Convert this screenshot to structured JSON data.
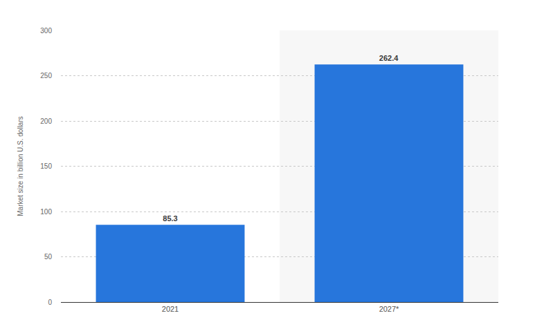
{
  "chart_data": {
    "type": "bar",
    "ylabel": "Market size in billion U.S. dollars",
    "categories": [
      "2021",
      "2027*"
    ],
    "values": [
      85.3,
      262.4
    ],
    "color": "#2776dc",
    "ylim": [
      0,
      300
    ],
    "yticks": [
      0,
      50,
      100,
      150,
      200,
      250,
      300
    ],
    "grid": true,
    "data_labels": true
  }
}
